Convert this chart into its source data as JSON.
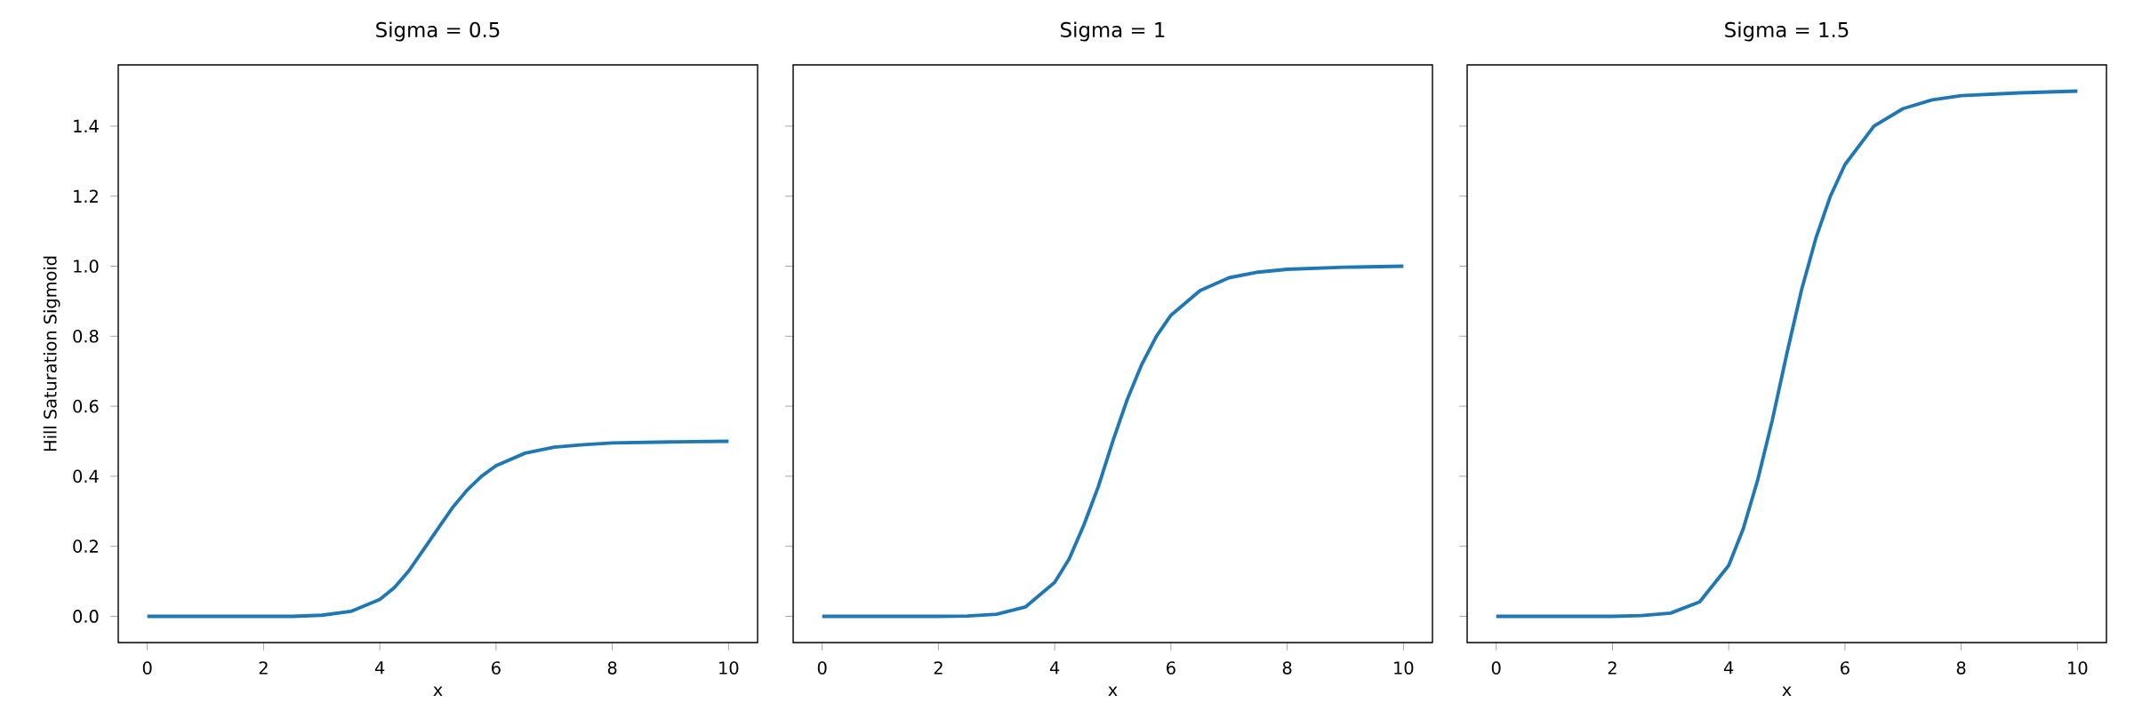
{
  "chart_data": [
    {
      "type": "line",
      "title": "Sigma = 0.5",
      "xlabel": "x",
      "ylabel": "Hill Saturation Sigmoid",
      "xlim": [
        -0.5,
        10.5
      ],
      "ylim": [
        -0.075,
        1.575
      ],
      "xticks": [
        0,
        2,
        4,
        6,
        8,
        10
      ],
      "yticks": [
        {
          "value": 0,
          "label": "0.0"
        },
        0.2,
        0.4,
        0.6,
        0.8,
        {
          "value": 1,
          "label": "1.0"
        },
        1.2,
        1.4
      ],
      "x": [
        0,
        1,
        2,
        2.5,
        3,
        3.5,
        4,
        4.25,
        4.5,
        4.75,
        5,
        5.25,
        5.5,
        5.75,
        6,
        6.5,
        7,
        7.5,
        8,
        9,
        10
      ],
      "series": [
        {
          "color": "#1f77b4",
          "values": [
            0,
            0,
            0,
            0,
            0.003,
            0.014,
            0.048,
            0.082,
            0.13,
            0.19,
            0.25,
            0.31,
            0.36,
            0.4,
            0.43,
            0.466,
            0.483,
            0.49,
            0.495,
            0.498,
            0.5
          ]
        }
      ]
    },
    {
      "type": "line",
      "title": "Sigma = 1",
      "xlabel": "x",
      "xlim": [
        -0.5,
        10.5
      ],
      "ylim": [
        -0.075,
        1.575
      ],
      "xticks": [
        0,
        2,
        4,
        6,
        8,
        10
      ],
      "yticks": [
        0,
        0.2,
        0.4,
        0.6,
        0.8,
        1,
        1.2,
        1.4
      ],
      "tick_labels": "x",
      "x": [
        0,
        1,
        2,
        2.5,
        3,
        3.5,
        4,
        4.25,
        4.5,
        4.75,
        5,
        5.25,
        5.5,
        5.75,
        6,
        6.5,
        7,
        7.5,
        8,
        9,
        10
      ],
      "series": [
        {
          "color": "#1f77b4",
          "values": [
            0,
            0,
            0,
            0.001,
            0.006,
            0.027,
            0.097,
            0.164,
            0.26,
            0.37,
            0.5,
            0.62,
            0.72,
            0.8,
            0.86,
            0.93,
            0.967,
            0.983,
            0.991,
            0.997,
            1
          ]
        }
      ]
    },
    {
      "type": "line",
      "title": "Sigma = 1.5",
      "xlabel": "x",
      "xlim": [
        -0.5,
        10.5
      ],
      "ylim": [
        -0.075,
        1.575
      ],
      "xticks": [
        0,
        2,
        4,
        6,
        8,
        10
      ],
      "yticks": [
        0,
        0.2,
        0.4,
        0.6,
        0.8,
        1,
        1.2,
        1.4
      ],
      "tick_labels": "x",
      "x": [
        0,
        1,
        2,
        2.5,
        3,
        3.5,
        4,
        4.25,
        4.5,
        4.75,
        5,
        5.25,
        5.5,
        5.75,
        6,
        6.5,
        7,
        7.5,
        8,
        9,
        10
      ],
      "series": [
        {
          "color": "#1f77b4",
          "values": [
            0,
            0,
            0,
            0.002,
            0.009,
            0.041,
            0.145,
            0.25,
            0.39,
            0.56,
            0.75,
            0.93,
            1.08,
            1.2,
            1.29,
            1.4,
            1.45,
            1.475,
            1.487,
            1.495,
            1.5
          ]
        }
      ]
    }
  ]
}
